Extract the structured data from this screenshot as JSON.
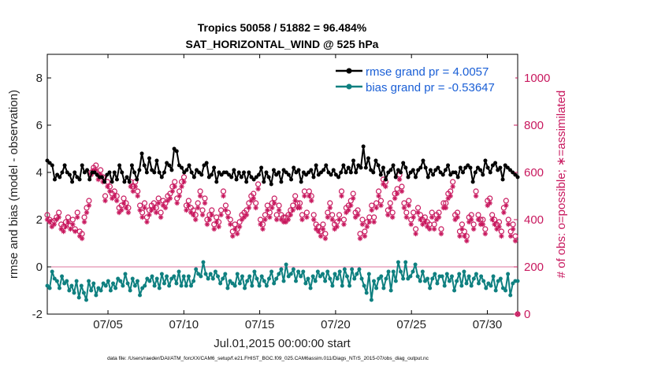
{
  "chart_data": {
    "type": "line",
    "title_line1": "Tropics 50058 / 51882 = 96.484%",
    "title_line2": "SAT_HORIZONTAL_WIND @ 525 hPa",
    "xlabel": "Jul.01,2015 00:00:00 start",
    "ylabel_left": "rmse and bias (model - observation)",
    "ylabel_right": "# of obs: o=possible; ∗=assimilated",
    "footer": "data file: /Users/raeder/DAI/ATM_forcXX/CAM6_setup/f.e21.FHIST_BGC.f09_025.CAM6assim.011/Diags_NTrS_2015-07/obs_diag_output.nc",
    "x_ticks": [
      {
        "x": 5,
        "label": "07/05"
      },
      {
        "x": 10,
        "label": "07/10"
      },
      {
        "x": 15,
        "label": "07/15"
      },
      {
        "x": 20,
        "label": "07/20"
      },
      {
        "x": 25,
        "label": "07/25"
      },
      {
        "x": 30,
        "label": "07/30"
      }
    ],
    "y_ticks_left": [
      "-2",
      "0",
      "2",
      "4",
      "6",
      "8"
    ],
    "y_ticks_right": [
      "0",
      "200",
      "400",
      "600",
      "800",
      "1000"
    ],
    "xlim": [
      1,
      32
    ],
    "ylim_left": [
      -2,
      9
    ],
    "ylim_right": [
      0,
      1100
    ],
    "legend_position": "top-right",
    "colors": {
      "rmse": "#000000",
      "bias": "#0f8080",
      "obs": "#c8185e",
      "legend_text": "#1a5fd6",
      "zero_line": "#c8185e"
    },
    "series": [
      {
        "name": "rmse grand pr = 4.0057",
        "values": [
          4.5,
          4.4,
          4.3,
          3.7,
          3.9,
          3.8,
          4.0,
          4.3,
          4.0,
          3.9,
          3.6,
          4.0,
          3.8,
          3.7,
          4.3,
          4.0,
          4.1,
          3.7,
          4.0,
          4.0,
          3.9,
          3.8,
          3.8,
          3.6,
          3.9,
          4.0,
          3.6,
          4.0,
          3.7,
          4.3,
          4.0,
          3.6,
          3.8,
          3.6,
          4.3,
          4.0,
          3.7,
          4.1,
          4.8,
          4.3,
          4.0,
          4.6,
          4.1,
          4.0,
          4.5,
          4.0,
          3.8,
          4.0,
          4.4,
          4.3,
          4.1,
          5.0,
          4.9,
          4.3,
          4.2,
          4.0,
          4.1,
          4.3,
          4.0,
          3.8,
          4.1,
          4.0,
          3.9,
          4.3,
          4.4,
          3.8,
          3.9,
          4.2,
          3.6,
          4.0,
          3.9,
          4.0,
          4.0,
          3.9,
          3.8,
          4.1,
          3.7,
          4.0,
          3.8,
          4.0,
          3.6,
          4.0,
          3.8,
          3.7,
          3.8,
          3.9,
          4.2,
          3.6,
          4.0,
          3.8,
          3.5,
          4.1,
          3.9,
          4.0,
          3.6,
          4.1,
          4.0,
          3.9,
          3.7,
          4.2,
          4.0,
          4.1,
          3.6,
          4.0,
          3.9,
          4.0,
          4.1,
          3.8,
          4.3,
          3.9,
          4.0,
          4.1,
          4.3,
          4.0,
          3.9,
          4.1,
          3.9,
          3.8,
          4.0,
          4.3,
          4.0,
          4.2,
          4.0,
          4.5,
          4.0,
          4.3,
          4.2,
          5.1,
          4.2,
          4.6,
          4.1,
          4.0,
          4.5,
          4.3,
          3.9,
          4.2,
          3.7,
          4.0,
          4.1,
          4.3,
          3.8,
          4.1,
          4.0,
          4.4,
          4.2,
          3.8,
          4.0,
          4.1,
          3.8,
          4.1,
          4.2,
          4.5,
          4.2,
          3.8,
          4.1,
          3.9,
          4.1,
          4.2,
          4.0,
          3.9,
          4.1,
          4.3,
          3.9,
          4.0,
          4.0,
          3.8,
          4.2,
          4.0,
          4.2,
          4.3,
          4.2,
          3.6,
          4.0,
          4.2,
          4.1,
          3.9,
          4.5,
          4.2,
          4.0,
          4.3,
          4.4,
          4.1,
          4.2,
          3.7,
          4.3,
          4.2,
          4.1,
          4.0,
          3.9,
          3.8
        ]
      },
      {
        "name": "bias grand pr = -0.53647",
        "values": [
          -0.8,
          -0.9,
          -0.2,
          -0.5,
          -0.6,
          -0.9,
          -0.4,
          -0.7,
          -0.6,
          -1.0,
          -0.8,
          -1.1,
          -0.6,
          -1.3,
          -0.8,
          -1.1,
          -1.4,
          -0.6,
          -1.0,
          -0.7,
          -1.2,
          -0.9,
          -1.0,
          -0.7,
          -0.8,
          -0.6,
          -1.0,
          -0.7,
          -0.9,
          -0.5,
          -0.6,
          -0.8,
          -0.3,
          -0.7,
          -1.0,
          -0.5,
          -0.8,
          -0.6,
          -1.2,
          -0.9,
          -0.8,
          -0.5,
          -0.6,
          -0.4,
          -0.8,
          -0.5,
          -0.9,
          -0.3,
          -0.7,
          -0.4,
          -0.8,
          -0.5,
          -0.4,
          -0.7,
          -0.2,
          -0.8,
          -0.4,
          -0.8,
          -0.4,
          -0.8,
          -0.6,
          -0.1,
          -0.3,
          -0.4,
          0.2,
          -0.3,
          -0.5,
          -0.3,
          -0.5,
          -0.2,
          -0.4,
          -0.7,
          -0.5,
          -0.3,
          -0.9,
          -0.6,
          -0.7,
          -0.8,
          -0.3,
          -0.7,
          -0.4,
          -0.9,
          -0.6,
          -0.4,
          -0.8,
          -0.2,
          -0.5,
          -0.8,
          -0.4,
          -0.6,
          -0.8,
          -0.5,
          -0.2,
          -0.7,
          -0.5,
          -0.3,
          -0.1,
          -0.6,
          0.1,
          -0.4,
          -0.3,
          -0.1,
          -0.6,
          -0.2,
          -0.4,
          -0.2,
          -0.7,
          -0.5,
          -0.9,
          -0.4,
          -0.6,
          -0.2,
          -0.4,
          -0.3,
          -0.6,
          -0.2,
          -0.5,
          -0.8,
          -0.3,
          -0.5,
          -0.2,
          -0.8,
          -0.1,
          -0.4,
          -0.8,
          -0.1,
          -0.5,
          -0.3,
          -0.1,
          -0.5,
          -0.8,
          -1.1,
          -0.3,
          -1.4,
          -0.6,
          -0.9,
          -0.5,
          -0.4,
          -0.9,
          -0.5,
          -0.2,
          -1.0,
          -0.2,
          -0.6,
          0.2,
          -0.2,
          -0.5,
          0.2,
          -0.5,
          -0.4,
          -0.2,
          0.1,
          -0.4,
          -0.6,
          -0.2,
          -0.6,
          -0.5,
          -0.9,
          -0.5,
          -0.3,
          -0.7,
          -0.4,
          -0.4,
          -0.8,
          -0.3,
          -0.6,
          -0.4,
          -1.0,
          -0.6,
          -0.3,
          -0.8,
          -0.2,
          -0.7,
          -0.4,
          -0.8,
          -0.5,
          -0.3,
          -0.7,
          -0.4,
          -0.6,
          -0.9,
          -0.7,
          -0.8,
          -0.4,
          -1.0,
          -0.6,
          -0.5,
          -0.9,
          -1.0,
          -0.3,
          -1.2,
          -0.7,
          -0.6,
          -0.6
        ]
      }
    ],
    "obs_possible": [
      420,
      400,
      390,
      395,
      410,
      430,
      380,
      370,
      390,
      410,
      375,
      400,
      360,
      430,
      350,
      340,
      410,
      450,
      480,
      600,
      620,
      630,
      590,
      610,
      580,
      500,
      560,
      540,
      510,
      520,
      500,
      450,
      460,
      490,
      470,
      450,
      560,
      540,
      560,
      520,
      460,
      430,
      470,
      410,
      440,
      460,
      470,
      450,
      490,
      430,
      480,
      470,
      500,
      510,
      540,
      560,
      490,
      520,
      560,
      580,
      460,
      480,
      450,
      440,
      420,
      470,
      520,
      440,
      490,
      400,
      420,
      440,
      380,
      410,
      390,
      440,
      520,
      460,
      430,
      400,
      350,
      380,
      360,
      390,
      420,
      430,
      440,
      470,
      500,
      510,
      470,
      550,
      400,
      380,
      420,
      460,
      430,
      470,
      490,
      420,
      460,
      420,
      410,
      410,
      420,
      440,
      460,
      500,
      470,
      470,
      420,
      520,
      430,
      520,
      500,
      420,
      380,
      370,
      350,
      380,
      340,
      430,
      470,
      420,
      380,
      390,
      420,
      520,
      400,
      450,
      460,
      480,
      510,
      430,
      440,
      340,
      400,
      350,
      390,
      410,
      460,
      410,
      470,
      520,
      480,
      570,
      560,
      440,
      470,
      430,
      510,
      530,
      590,
      540,
      470,
      430,
      480,
      400,
      430,
      360,
      450,
      420,
      400,
      410,
      390,
      380,
      430,
      380,
      420,
      430,
      360,
      470,
      470,
      510,
      520,
      560,
      420,
      430,
      350,
      380,
      350,
      330,
      410,
      420,
      380,
      520,
      420,
      400,
      400,
      360,
      480,
      490,
      420,
      400,
      380,
      390,
      350,
      450,
      480,
      400,
      350,
      380,
      330,
      0
    ],
    "obs_assimilated": [
      400,
      390,
      370,
      380,
      400,
      410,
      360,
      350,
      370,
      390,
      360,
      380,
      350,
      410,
      330,
      320,
      390,
      430,
      460,
      590,
      610,
      610,
      570,
      590,
      560,
      480,
      540,
      520,
      490,
      500,
      480,
      430,
      440,
      470,
      450,
      430,
      540,
      520,
      540,
      500,
      440,
      410,
      450,
      390,
      420,
      440,
      450,
      430,
      470,
      410,
      460,
      450,
      480,
      490,
      520,
      540,
      470,
      500,
      540,
      560,
      440,
      460,
      430,
      420,
      400,
      450,
      500,
      420,
      470,
      380,
      400,
      420,
      360,
      390,
      370,
      420,
      500,
      440,
      410,
      380,
      330,
      360,
      340,
      370,
      400,
      410,
      420,
      450,
      480,
      490,
      450,
      530,
      380,
      360,
      400,
      440,
      410,
      450,
      470,
      400,
      440,
      400,
      390,
      390,
      400,
      420,
      440,
      480,
      450,
      450,
      400,
      500,
      410,
      500,
      480,
      400,
      360,
      350,
      330,
      360,
      320,
      410,
      450,
      400,
      360,
      370,
      400,
      500,
      380,
      430,
      440,
      460,
      490,
      410,
      420,
      320,
      380,
      330,
      370,
      390,
      440,
      390,
      450,
      500,
      460,
      550,
      540,
      420,
      450,
      410,
      490,
      510,
      570,
      520,
      450,
      410,
      460,
      380,
      410,
      340,
      430,
      400,
      380,
      390,
      370,
      360,
      410,
      360,
      400,
      410,
      340,
      450,
      450,
      490,
      500,
      540,
      400,
      410,
      330,
      360,
      330,
      310,
      390,
      400,
      360,
      500,
      400,
      380,
      380,
      340,
      460,
      470,
      400,
      380,
      360,
      370,
      330,
      430,
      460,
      380,
      330,
      360,
      310,
      0
    ]
  }
}
